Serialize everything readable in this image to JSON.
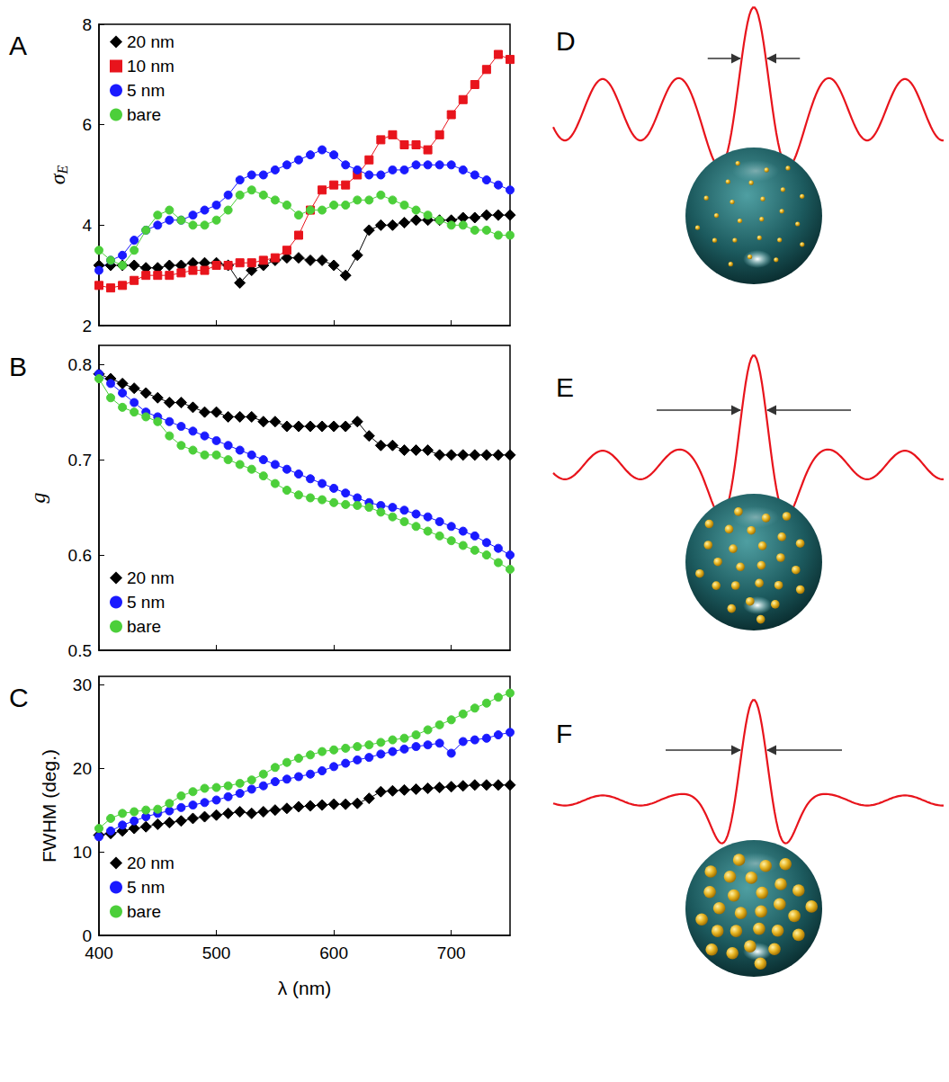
{
  "chart_data": [
    {
      "type": "line",
      "panel": "A",
      "x": [
        400,
        410,
        420,
        430,
        440,
        450,
        460,
        470,
        480,
        490,
        500,
        510,
        520,
        530,
        540,
        550,
        560,
        570,
        580,
        590,
        600,
        610,
        620,
        630,
        640,
        650,
        660,
        670,
        680,
        690,
        700,
        710,
        720,
        730,
        740,
        750
      ],
      "xlim": [
        400,
        750
      ],
      "xticks": [
        400,
        500,
        600,
        700
      ],
      "ylim": [
        2,
        8
      ],
      "yticks": [
        2,
        4,
        6,
        8
      ],
      "y_label": "σE",
      "tick_labels": "y",
      "legend": "upper left",
      "grid": false,
      "series": [
        {
          "name": "20 nm",
          "color": "#000000",
          "marker": "diamond",
          "values": [
            3.2,
            3.2,
            3.2,
            3.2,
            3.15,
            3.15,
            3.2,
            3.2,
            3.25,
            3.25,
            3.25,
            3.2,
            2.85,
            3.1,
            3.2,
            3.3,
            3.35,
            3.35,
            3.3,
            3.3,
            3.2,
            3.0,
            3.4,
            3.9,
            4.0,
            4.0,
            4.05,
            4.1,
            4.1,
            4.1,
            4.1,
            4.15,
            4.15,
            4.2,
            4.2,
            4.2
          ]
        },
        {
          "name": "10 nm",
          "color": "#e8141c",
          "marker": "square",
          "values": [
            2.8,
            2.75,
            2.8,
            2.9,
            3.0,
            3.0,
            3.0,
            3.05,
            3.1,
            3.1,
            3.2,
            3.2,
            3.25,
            3.25,
            3.3,
            3.35,
            3.5,
            3.8,
            4.3,
            4.7,
            4.8,
            4.8,
            5.0,
            5.3,
            5.7,
            5.8,
            5.6,
            5.6,
            5.5,
            5.8,
            6.2,
            6.5,
            6.8,
            7.1,
            7.4,
            7.3
          ]
        },
        {
          "name": "5 nm",
          "color": "#1a1aff",
          "marker": "circle",
          "values": [
            3.1,
            3.3,
            3.4,
            3.7,
            3.9,
            4.0,
            4.1,
            4.1,
            4.2,
            4.3,
            4.4,
            4.6,
            4.9,
            5.0,
            5.0,
            5.1,
            5.2,
            5.3,
            5.4,
            5.5,
            5.4,
            5.2,
            5.1,
            5.0,
            5.0,
            5.1,
            5.1,
            5.2,
            5.2,
            5.2,
            5.2,
            5.1,
            5.0,
            4.9,
            4.8,
            4.7
          ]
        },
        {
          "name": "bare",
          "color": "#4ccf3a",
          "marker": "circle",
          "values": [
            3.5,
            3.3,
            3.2,
            3.5,
            3.9,
            4.2,
            4.3,
            4.1,
            4.0,
            4.0,
            4.1,
            4.3,
            4.6,
            4.7,
            4.6,
            4.5,
            4.4,
            4.2,
            4.3,
            4.3,
            4.4,
            4.4,
            4.5,
            4.5,
            4.6,
            4.5,
            4.4,
            4.3,
            4.2,
            4.1,
            4.0,
            4.0,
            3.9,
            3.9,
            3.8,
            3.8
          ]
        }
      ]
    },
    {
      "type": "line",
      "panel": "B",
      "x": [
        400,
        410,
        420,
        430,
        440,
        450,
        460,
        470,
        480,
        490,
        500,
        510,
        520,
        530,
        540,
        550,
        560,
        570,
        580,
        590,
        600,
        610,
        620,
        630,
        640,
        650,
        660,
        670,
        680,
        690,
        700,
        710,
        720,
        730,
        740,
        750
      ],
      "xlim": [
        400,
        750
      ],
      "xticks": [
        400,
        500,
        600,
        700
      ],
      "ylim": [
        0.5,
        0.82
      ],
      "yticks": [
        0.5,
        0.6,
        0.7,
        0.8
      ],
      "y_label": "g",
      "tick_labels": "y",
      "legend": "lower left",
      "grid": false,
      "series": [
        {
          "name": "20 nm",
          "color": "#000000",
          "marker": "diamond",
          "values": [
            0.79,
            0.785,
            0.78,
            0.775,
            0.77,
            0.765,
            0.76,
            0.76,
            0.755,
            0.75,
            0.75,
            0.745,
            0.745,
            0.745,
            0.74,
            0.74,
            0.735,
            0.735,
            0.735,
            0.735,
            0.735,
            0.735,
            0.74,
            0.725,
            0.715,
            0.715,
            0.71,
            0.71,
            0.71,
            0.705,
            0.705,
            0.705,
            0.705,
            0.705,
            0.705,
            0.705
          ]
        },
        {
          "name": "5 nm",
          "color": "#1a1aff",
          "marker": "circle",
          "values": [
            0.79,
            0.78,
            0.77,
            0.76,
            0.75,
            0.745,
            0.74,
            0.735,
            0.73,
            0.725,
            0.72,
            0.715,
            0.71,
            0.705,
            0.7,
            0.695,
            0.69,
            0.685,
            0.68,
            0.675,
            0.67,
            0.665,
            0.66,
            0.655,
            0.652,
            0.65,
            0.647,
            0.643,
            0.64,
            0.635,
            0.63,
            0.625,
            0.62,
            0.613,
            0.607,
            0.6
          ]
        },
        {
          "name": "bare",
          "color": "#4ccf3a",
          "marker": "circle",
          "values": [
            0.785,
            0.765,
            0.755,
            0.75,
            0.745,
            0.74,
            0.725,
            0.715,
            0.71,
            0.705,
            0.705,
            0.7,
            0.695,
            0.69,
            0.683,
            0.675,
            0.668,
            0.663,
            0.66,
            0.658,
            0.655,
            0.653,
            0.652,
            0.65,
            0.645,
            0.64,
            0.635,
            0.63,
            0.625,
            0.62,
            0.615,
            0.61,
            0.605,
            0.6,
            0.592,
            0.585
          ]
        }
      ]
    },
    {
      "type": "line",
      "panel": "C",
      "x": [
        400,
        410,
        420,
        430,
        440,
        450,
        460,
        470,
        480,
        490,
        500,
        510,
        520,
        530,
        540,
        550,
        560,
        570,
        580,
        590,
        600,
        610,
        620,
        630,
        640,
        650,
        660,
        670,
        680,
        690,
        700,
        710,
        720,
        730,
        740,
        750
      ],
      "xlim": [
        400,
        750
      ],
      "xticks": [
        400,
        500,
        600,
        700
      ],
      "ylim": [
        0,
        31
      ],
      "yticks": [
        0,
        10,
        20,
        30
      ],
      "x_label": "λ (nm)",
      "y_label": "FWHM (deg.)",
      "legend": "lower left",
      "grid": false,
      "series": [
        {
          "name": "20 nm",
          "color": "#000000",
          "marker": "diamond",
          "values": [
            12,
            12.2,
            12.5,
            12.8,
            13,
            13.3,
            13.5,
            13.7,
            14,
            14.2,
            14.4,
            14.6,
            14.8,
            14.6,
            14.8,
            15,
            15.2,
            15.4,
            15.5,
            15.6,
            15.7,
            15.7,
            15.8,
            16.4,
            17.2,
            17.3,
            17.4,
            17.5,
            17.6,
            17.7,
            17.8,
            17.9,
            18,
            18,
            18,
            18
          ]
        },
        {
          "name": "5 nm",
          "color": "#1a1aff",
          "marker": "circle",
          "values": [
            11.8,
            12.5,
            13.2,
            13.7,
            14.2,
            14.6,
            14.9,
            15.3,
            15.6,
            15.9,
            16.2,
            16.6,
            17,
            17.5,
            17.9,
            18.4,
            18.7,
            19,
            19.3,
            19.7,
            20.2,
            20.6,
            21,
            21.3,
            21.7,
            22,
            22.3,
            22.6,
            22.8,
            23,
            21.8,
            23.2,
            23.4,
            23.6,
            24,
            24.3
          ]
        },
        {
          "name": "bare",
          "color": "#4ccf3a",
          "marker": "circle",
          "values": [
            12.8,
            14,
            14.6,
            14.8,
            15,
            15.1,
            15.8,
            16.7,
            17.2,
            17.6,
            17.7,
            17.9,
            18.2,
            18.6,
            19.3,
            20.1,
            20.7,
            21.2,
            21.6,
            22,
            22.2,
            22.4,
            22.6,
            22.8,
            23.1,
            23.4,
            23.6,
            24,
            24.6,
            25.2,
            25.8,
            26.5,
            27.2,
            27.8,
            28.5,
            29
          ]
        }
      ]
    }
  ],
  "diagrams": [
    {
      "label": "D"
    },
    {
      "label": "E"
    },
    {
      "label": "F"
    }
  ]
}
